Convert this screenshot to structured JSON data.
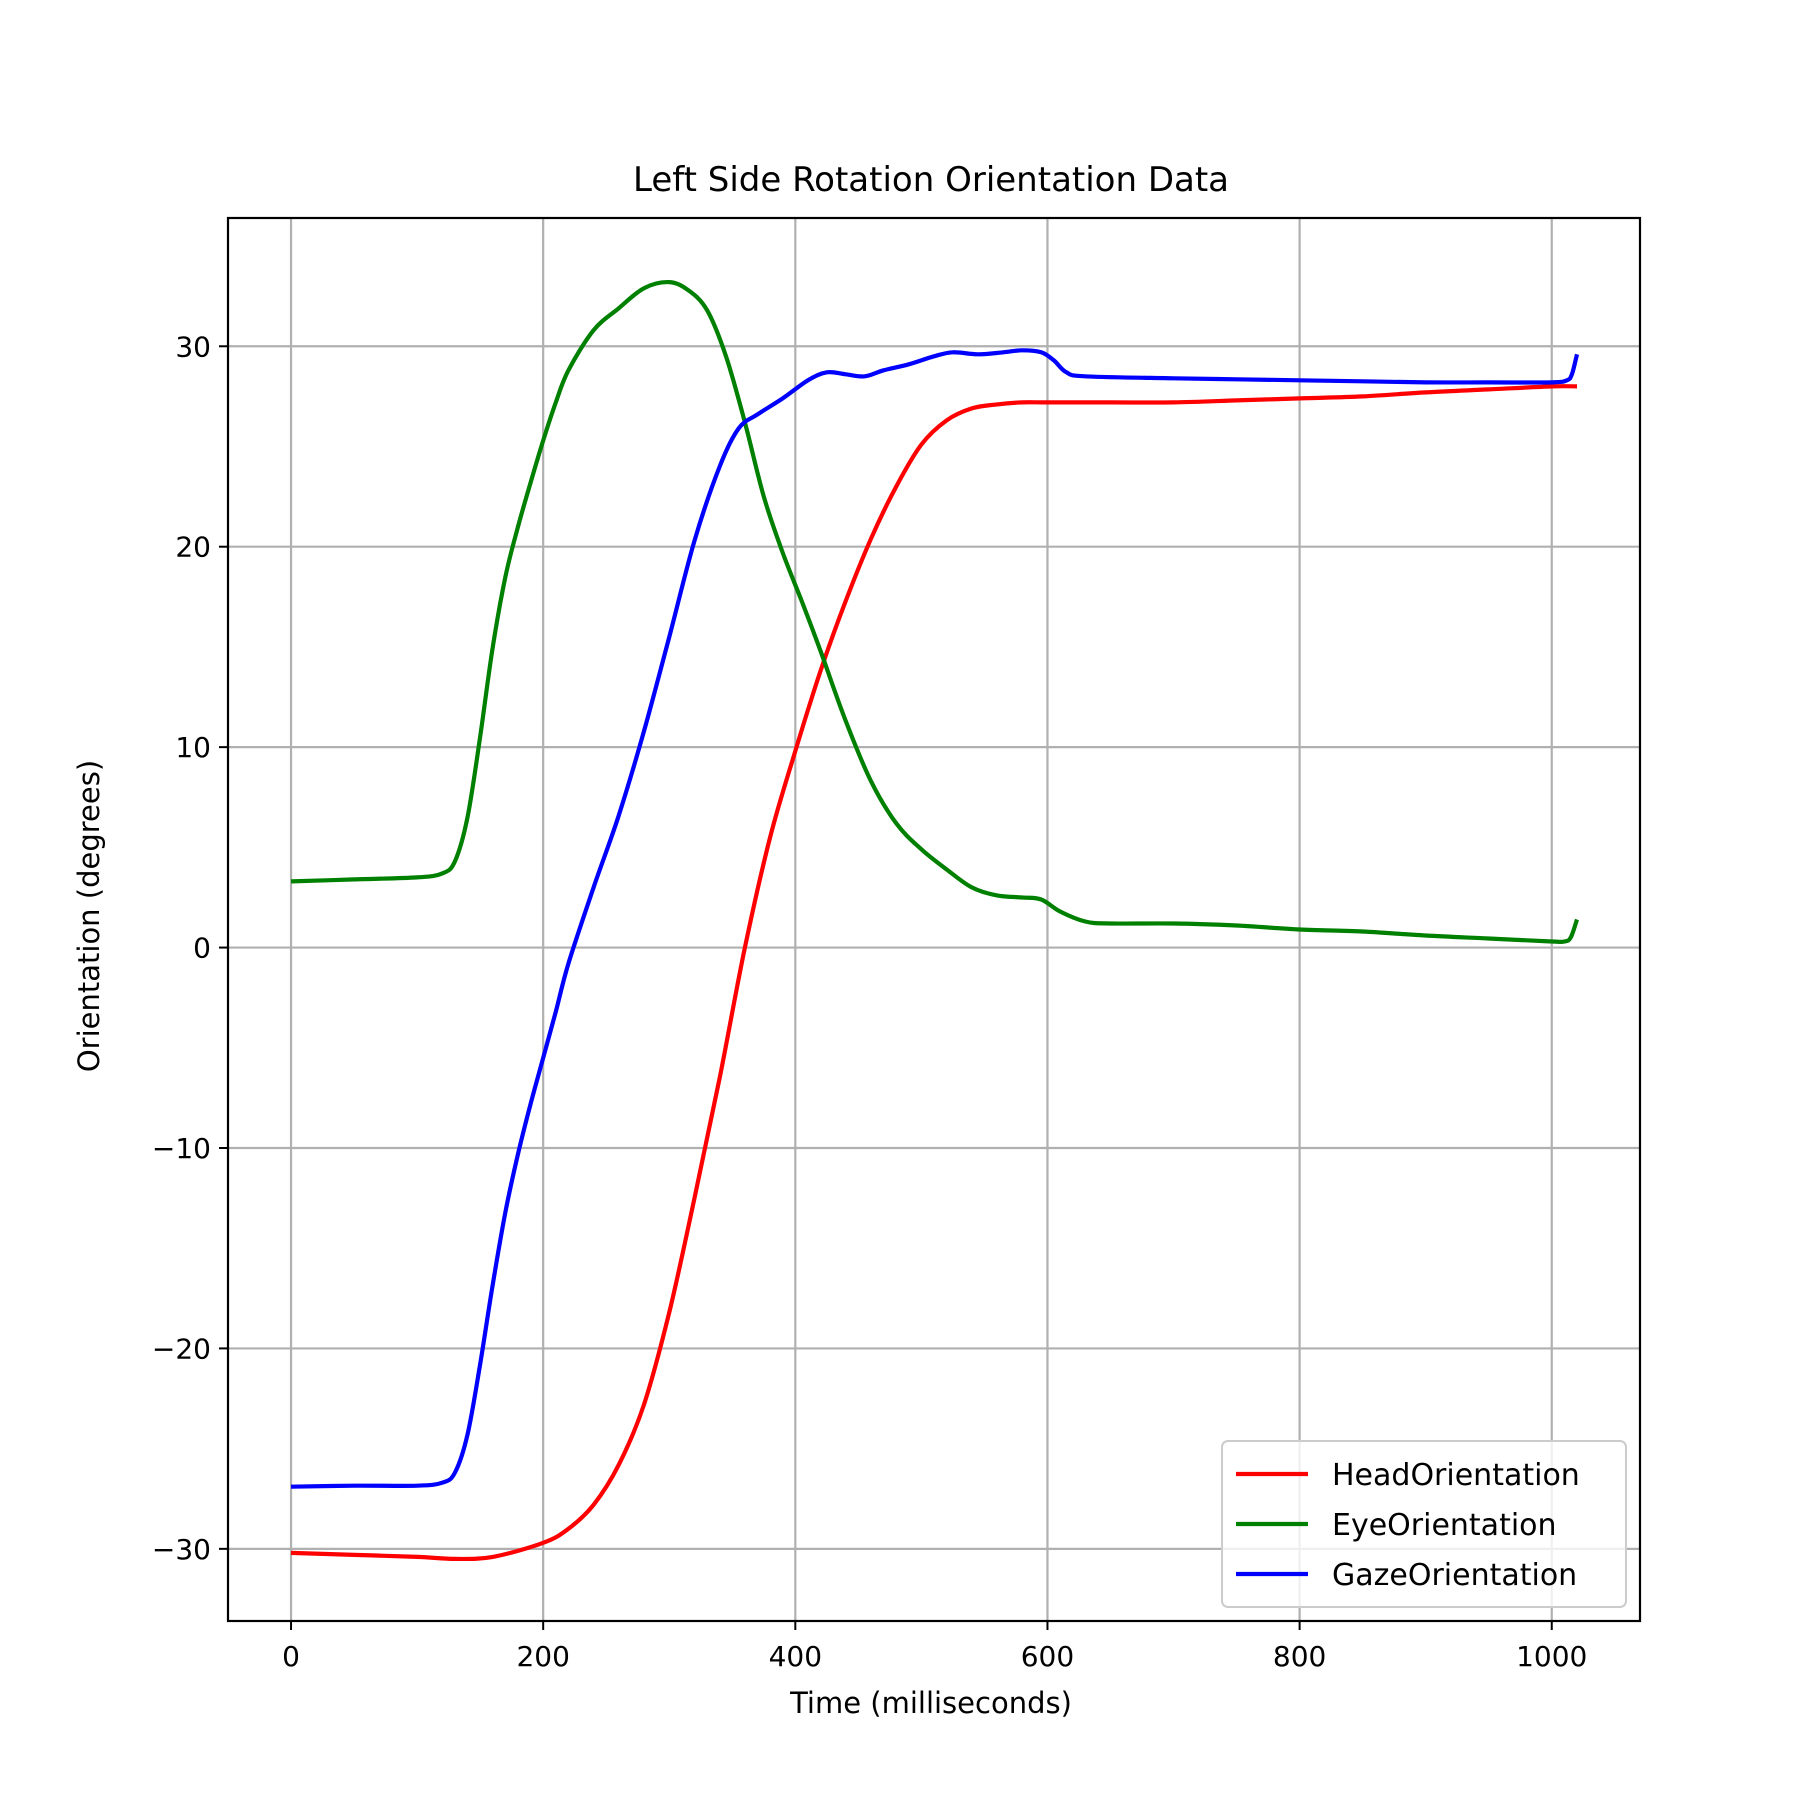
{
  "chart_data": {
    "type": "line",
    "title": "Left Side Rotation Orientation Data",
    "xlabel": "Time (milliseconds)",
    "ylabel": "Orientation (degrees)",
    "xlim": [
      -50,
      1070
    ],
    "ylim": [
      -33.6,
      36.4
    ],
    "xticks": [
      0,
      200,
      400,
      600,
      800,
      1000
    ],
    "xtick_labels": [
      "0",
      "200",
      "400",
      "600",
      "800",
      "1000"
    ],
    "yticks": [
      -30,
      -20,
      -10,
      0,
      10,
      20,
      30
    ],
    "ytick_labels": [
      "−30",
      "−20",
      "−10",
      "0",
      "10",
      "20",
      "30"
    ],
    "grid": true,
    "legend_position": "bottom-right",
    "series": [
      {
        "name": "HeadOrientation",
        "color": "#ff0000",
        "points": [
          [
            0,
            -30.2
          ],
          [
            50,
            -30.3
          ],
          [
            100,
            -30.4
          ],
          [
            130,
            -30.5
          ],
          [
            160,
            -30.4
          ],
          [
            200,
            -29.7
          ],
          [
            220,
            -29.0
          ],
          [
            240,
            -27.8
          ],
          [
            260,
            -25.8
          ],
          [
            280,
            -22.8
          ],
          [
            300,
            -18.2
          ],
          [
            320,
            -12.5
          ],
          [
            340,
            -6.5
          ],
          [
            360,
            0
          ],
          [
            380,
            5.5
          ],
          [
            400,
            9.8
          ],
          [
            420,
            13.8
          ],
          [
            440,
            17.3
          ],
          [
            460,
            20.4
          ],
          [
            480,
            23.0
          ],
          [
            500,
            25.1
          ],
          [
            520,
            26.3
          ],
          [
            540,
            26.9
          ],
          [
            560,
            27.1
          ],
          [
            580,
            27.2
          ],
          [
            600,
            27.2
          ],
          [
            650,
            27.2
          ],
          [
            700,
            27.2
          ],
          [
            750,
            27.3
          ],
          [
            800,
            27.4
          ],
          [
            850,
            27.5
          ],
          [
            900,
            27.7
          ],
          [
            950,
            27.85
          ],
          [
            1000,
            28.0
          ],
          [
            1020,
            28.0
          ]
        ]
      },
      {
        "name": "EyeOrientation",
        "color": "#008000",
        "points": [
          [
            0,
            3.3
          ],
          [
            50,
            3.4
          ],
          [
            100,
            3.5
          ],
          [
            120,
            3.7
          ],
          [
            130,
            4.3
          ],
          [
            140,
            6.5
          ],
          [
            150,
            10.5
          ],
          [
            160,
            15.0
          ],
          [
            170,
            18.5
          ],
          [
            180,
            21.0
          ],
          [
            190,
            23.2
          ],
          [
            200,
            25.3
          ],
          [
            210,
            27.2
          ],
          [
            220,
            28.8
          ],
          [
            240,
            30.8
          ],
          [
            260,
            31.9
          ],
          [
            280,
            32.9
          ],
          [
            300,
            33.2
          ],
          [
            315,
            32.8
          ],
          [
            330,
            31.8
          ],
          [
            345,
            29.5
          ],
          [
            360,
            26.2
          ],
          [
            375,
            22.5
          ],
          [
            390,
            19.7
          ],
          [
            405,
            17.3
          ],
          [
            420,
            14.8
          ],
          [
            440,
            11.3
          ],
          [
            460,
            8.3
          ],
          [
            480,
            6.2
          ],
          [
            500,
            4.9
          ],
          [
            520,
            3.9
          ],
          [
            540,
            3.0
          ],
          [
            560,
            2.6
          ],
          [
            580,
            2.5
          ],
          [
            595,
            2.4
          ],
          [
            610,
            1.8
          ],
          [
            630,
            1.3
          ],
          [
            650,
            1.2
          ],
          [
            700,
            1.2
          ],
          [
            750,
            1.1
          ],
          [
            800,
            0.9
          ],
          [
            850,
            0.8
          ],
          [
            900,
            0.6
          ],
          [
            950,
            0.45
          ],
          [
            1000,
            0.3
          ],
          [
            1010,
            0.3
          ],
          [
            1015,
            0.5
          ],
          [
            1020,
            1.4
          ]
        ]
      },
      {
        "name": "GazeOrientation",
        "color": "#0000ff",
        "points": [
          [
            0,
            -26.9
          ],
          [
            50,
            -26.85
          ],
          [
            100,
            -26.85
          ],
          [
            120,
            -26.7
          ],
          [
            130,
            -26.2
          ],
          [
            140,
            -24.3
          ],
          [
            150,
            -20.8
          ],
          [
            160,
            -16.8
          ],
          [
            170,
            -13.2
          ],
          [
            180,
            -10.3
          ],
          [
            190,
            -7.8
          ],
          [
            200,
            -5.5
          ],
          [
            210,
            -3.2
          ],
          [
            220,
            -0.8
          ],
          [
            240,
            3.0
          ],
          [
            260,
            6.6
          ],
          [
            280,
            10.8
          ],
          [
            300,
            15.5
          ],
          [
            320,
            20.3
          ],
          [
            340,
            24.0
          ],
          [
            355,
            25.9
          ],
          [
            370,
            26.6
          ],
          [
            390,
            27.4
          ],
          [
            410,
            28.3
          ],
          [
            425,
            28.7
          ],
          [
            440,
            28.6
          ],
          [
            455,
            28.5
          ],
          [
            470,
            28.8
          ],
          [
            490,
            29.1
          ],
          [
            510,
            29.5
          ],
          [
            525,
            29.7
          ],
          [
            545,
            29.6
          ],
          [
            565,
            29.7
          ],
          [
            580,
            29.8
          ],
          [
            595,
            29.7
          ],
          [
            605,
            29.3
          ],
          [
            615,
            28.7
          ],
          [
            630,
            28.5
          ],
          [
            700,
            28.4
          ],
          [
            750,
            28.35
          ],
          [
            800,
            28.3
          ],
          [
            850,
            28.25
          ],
          [
            900,
            28.2
          ],
          [
            950,
            28.2
          ],
          [
            1000,
            28.2
          ],
          [
            1012,
            28.3
          ],
          [
            1016,
            28.6
          ],
          [
            1020,
            29.6
          ]
        ]
      }
    ]
  }
}
